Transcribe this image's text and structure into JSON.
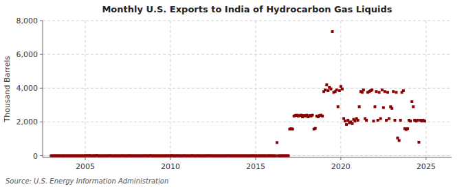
{
  "chart_data": {
    "type": "scatter",
    "title": "Monthly U.S. Exports to India of Hydrocarbon Gas Liquids",
    "y_label": "Thousand Barrels",
    "source": "Source: U.S. Energy Information Administration",
    "color": "#8b0000",
    "marker": "square",
    "grid": true,
    "xlim": [
      2002.5,
      2026.5
    ],
    "ylim": [
      -100,
      8000
    ],
    "xticks": [
      2005,
      2010,
      2015,
      2020,
      2025
    ],
    "yticks": [
      0,
      {
        "value": 2000,
        "label": "2,000"
      },
      {
        "value": 4000,
        "label": "4,000"
      },
      {
        "value": 6000,
        "label": "6,000"
      },
      {
        "value": 8000,
        "label": "8,000"
      }
    ],
    "x": [
      2003.0,
      2003.08,
      2003.17,
      2003.25,
      2003.33,
      2003.42,
      2003.5,
      2003.58,
      2003.67,
      2003.75,
      2003.83,
      2003.92,
      2004.0,
      2004.08,
      2004.17,
      2004.25,
      2004.33,
      2004.42,
      2004.5,
      2004.58,
      2004.67,
      2004.75,
      2004.83,
      2004.92,
      2005.0,
      2005.08,
      2005.17,
      2005.25,
      2005.33,
      2005.42,
      2005.5,
      2005.58,
      2005.67,
      2005.75,
      2005.83,
      2005.92,
      2006.0,
      2006.08,
      2006.17,
      2006.25,
      2006.33,
      2006.42,
      2006.5,
      2006.58,
      2006.67,
      2006.75,
      2006.83,
      2006.92,
      2007.0,
      2007.08,
      2007.17,
      2007.25,
      2007.33,
      2007.42,
      2007.5,
      2007.58,
      2007.67,
      2007.75,
      2007.83,
      2007.92,
      2008.0,
      2008.08,
      2008.17,
      2008.25,
      2008.33,
      2008.42,
      2008.5,
      2008.58,
      2008.67,
      2008.75,
      2008.83,
      2008.92,
      2009.0,
      2009.08,
      2009.17,
      2009.25,
      2009.33,
      2009.42,
      2009.5,
      2009.58,
      2009.67,
      2009.75,
      2009.83,
      2009.92,
      2010.0,
      2010.08,
      2010.17,
      2010.25,
      2010.33,
      2010.42,
      2010.5,
      2010.58,
      2010.67,
      2010.75,
      2010.83,
      2010.92,
      2011.0,
      2011.08,
      2011.17,
      2011.25,
      2011.33,
      2011.42,
      2011.5,
      2011.58,
      2011.67,
      2011.75,
      2011.83,
      2011.92,
      2012.0,
      2012.08,
      2012.17,
      2012.25,
      2012.33,
      2012.42,
      2012.5,
      2012.58,
      2012.67,
      2012.75,
      2012.83,
      2012.92,
      2013.0,
      2013.08,
      2013.17,
      2013.25,
      2013.33,
      2013.42,
      2013.5,
      2013.58,
      2013.67,
      2013.75,
      2013.83,
      2013.92,
      2014.0,
      2014.08,
      2014.17,
      2014.25,
      2014.33,
      2014.42,
      2014.5,
      2014.58,
      2014.67,
      2014.75,
      2014.83,
      2014.92,
      2015.0,
      2015.08,
      2015.17,
      2015.25,
      2015.33,
      2015.42,
      2015.5,
      2015.58,
      2015.67,
      2015.75,
      2015.83,
      2015.92,
      2016.0,
      2016.08,
      2016.17,
      2016.25,
      2016.33,
      2016.42,
      2016.5,
      2016.58,
      2016.67,
      2016.75,
      2016.83,
      2016.92,
      2017.0,
      2017.08,
      2017.17,
      2017.25,
      2017.33,
      2017.42,
      2017.5,
      2017.58,
      2017.67,
      2017.75,
      2017.83,
      2017.92,
      2018.0,
      2018.08,
      2018.17,
      2018.25,
      2018.33,
      2018.42,
      2018.5,
      2018.58,
      2018.67,
      2018.75,
      2018.83,
      2018.92,
      2019.0,
      2019.08,
      2019.17,
      2019.25,
      2019.33,
      2019.42,
      2019.5,
      2019.58,
      2019.67,
      2019.75,
      2019.83,
      2019.92,
      2020.0,
      2020.08,
      2020.17,
      2020.25,
      2020.33,
      2020.42,
      2020.5,
      2020.58,
      2020.67,
      2020.75,
      2020.83,
      2020.92,
      2021.0,
      2021.08,
      2021.17,
      2021.25,
      2021.33,
      2021.42,
      2021.5,
      2021.58,
      2021.67,
      2021.75,
      2021.83,
      2021.92,
      2022.0,
      2022.08,
      2022.17,
      2022.25,
      2022.33,
      2022.42,
      2022.5,
      2022.58,
      2022.67,
      2022.75,
      2022.83,
      2022.92,
      2023.0,
      2023.08,
      2023.17,
      2023.25,
      2023.33,
      2023.42,
      2023.5,
      2023.58,
      2023.67,
      2023.75,
      2023.83,
      2023.92,
      2024.0,
      2024.08,
      2024.17,
      2024.25,
      2024.33,
      2024.42,
      2024.5,
      2024.58,
      2024.67,
      2024.75,
      2024.83,
      2024.92
    ],
    "values": [
      0,
      0,
      0,
      2,
      0,
      0,
      0,
      0,
      0,
      0,
      0,
      0,
      0,
      0,
      0,
      0,
      0,
      0,
      0,
      0,
      0,
      0,
      0,
      0,
      5,
      8,
      0,
      12,
      0,
      0,
      5,
      0,
      18,
      0,
      0,
      0,
      0,
      0,
      0,
      0,
      0,
      8,
      0,
      0,
      0,
      0,
      0,
      0,
      0,
      0,
      5,
      0,
      0,
      0,
      0,
      8,
      0,
      0,
      0,
      0,
      0,
      0,
      0,
      0,
      0,
      0,
      5,
      0,
      0,
      0,
      10,
      0,
      0,
      0,
      0,
      0,
      0,
      0,
      0,
      0,
      0,
      0,
      5,
      0,
      0,
      12,
      0,
      0,
      0,
      8,
      0,
      0,
      0,
      0,
      5,
      0,
      0,
      0,
      0,
      8,
      0,
      0,
      0,
      5,
      0,
      0,
      0,
      0,
      0,
      0,
      8,
      0,
      5,
      0,
      0,
      0,
      0,
      0,
      0,
      0,
      0,
      0,
      0,
      0,
      0,
      5,
      0,
      0,
      0,
      0,
      0,
      0,
      0,
      0,
      0,
      0,
      0,
      0,
      0,
      0,
      0,
      0,
      5,
      0,
      0,
      0,
      0,
      0,
      0,
      0,
      0,
      0,
      0,
      0,
      5,
      0,
      0,
      0,
      0,
      780,
      0,
      0,
      0,
      0,
      0,
      0,
      5,
      0,
      1580,
      1600,
      1580,
      2350,
      2380,
      2400,
      2350,
      2380,
      2400,
      2300,
      2380,
      2350,
      2400,
      2300,
      2380,
      2350,
      2400,
      1580,
      1620,
      2350,
      2300,
      2380,
      2400,
      2350,
      3800,
      3900,
      4200,
      3850,
      4050,
      3950,
      7350,
      3750,
      3800,
      3900,
      2900,
      3850,
      4100,
      3950,
      2200,
      2050,
      1850,
      2100,
      1950,
      2000,
      1900,
      2150,
      2050,
      2200,
      2100,
      2900,
      3800,
      3750,
      3900,
      2200,
      2100,
      3750,
      3800,
      3850,
      3900,
      2050,
      2900,
      3800,
      2100,
      3750,
      2200,
      3900,
      2850,
      3800,
      2100,
      3750,
      2200,
      2900,
      2800,
      3800,
      2100,
      3750,
      1050,
      900,
      2100,
      3750,
      3850,
      1600,
      1550,
      1600,
      2100,
      2050,
      3200,
      2900,
      2100,
      2050,
      2100,
      800,
      2100,
      2050,
      2100,
      2050
    ]
  }
}
